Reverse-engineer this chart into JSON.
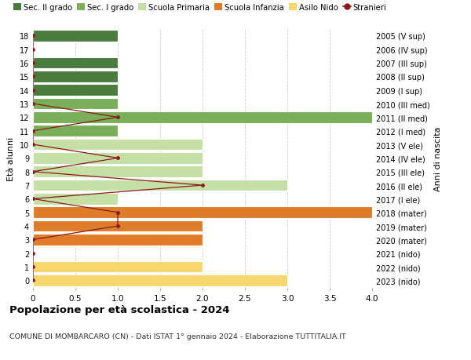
{
  "ages": [
    18,
    17,
    16,
    15,
    14,
    13,
    12,
    11,
    10,
    9,
    8,
    7,
    6,
    5,
    4,
    3,
    2,
    1,
    0
  ],
  "years": [
    "2005 (V sup)",
    "2006 (IV sup)",
    "2007 (III sup)",
    "2008 (II sup)",
    "2009 (I sup)",
    "2010 (III med)",
    "2011 (II med)",
    "2012 (I med)",
    "2013 (V ele)",
    "2014 (IV ele)",
    "2015 (III ele)",
    "2016 (II ele)",
    "2017 (I ele)",
    "2018 (mater)",
    "2019 (mater)",
    "2020 (mater)",
    "2021 (nido)",
    "2022 (nido)",
    "2023 (nido)"
  ],
  "bar_values": [
    1,
    0,
    1,
    1,
    1,
    1,
    4,
    1,
    2,
    2,
    2,
    3,
    1,
    4,
    2,
    2,
    0,
    2,
    3
  ],
  "bar_colors": [
    "#4a7c3f",
    "#4a7c3f",
    "#4a7c3f",
    "#4a7c3f",
    "#4a7c3f",
    "#7aaf5a",
    "#7aaf5a",
    "#7aaf5a",
    "#c5dfa5",
    "#c5dfa5",
    "#c5dfa5",
    "#c5dfa5",
    "#c5dfa5",
    "#e07b2a",
    "#e07b2a",
    "#e07b2a",
    "#f5d76e",
    "#f5d76e",
    "#f5d76e"
  ],
  "stranieri_values": [
    0,
    0,
    0,
    0,
    0,
    0,
    1,
    0,
    0,
    1,
    0,
    2,
    0,
    1,
    1,
    0,
    0,
    0,
    0
  ],
  "stranieri_color": "#8b1a1a",
  "legend_labels": [
    "Sec. II grado",
    "Sec. I grado",
    "Scuola Primaria",
    "Scuola Infanzia",
    "Asilo Nido",
    "Stranieri"
  ],
  "legend_colors": [
    "#4a7c3f",
    "#7aaf5a",
    "#c5dfa5",
    "#e07b2a",
    "#f5d76e",
    "#8b1a1a"
  ],
  "ylabel": "Età alunni",
  "right_ylabel": "Anni di nascita",
  "title": "Popolazione per età scolastica - 2024",
  "subtitle": "COMUNE DI MOMBARCARO (CN) - Dati ISTAT 1° gennaio 2024 - Elaborazione TUTTITALIA.IT",
  "xlim": [
    0,
    4.0
  ],
  "xticks": [
    0,
    0.5,
    1.0,
    1.5,
    2.0,
    2.5,
    3.0,
    3.5,
    4.0
  ],
  "bg_color": "#ffffff",
  "grid_color": "#cccccc",
  "bar_height": 0.85
}
